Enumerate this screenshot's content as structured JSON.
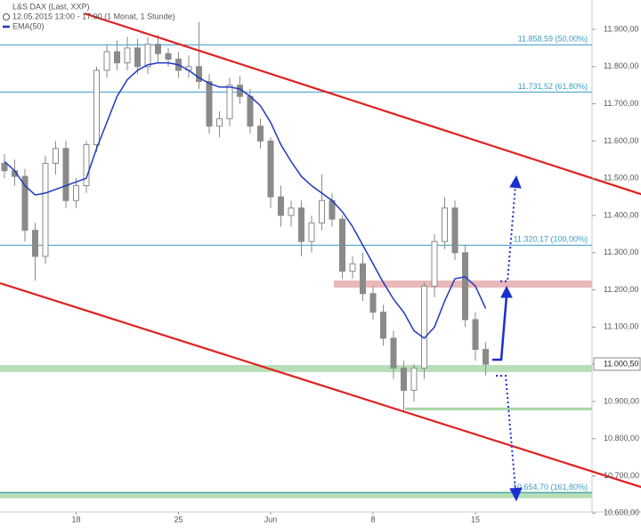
{
  "chart_data": {
    "type": "candlestick",
    "title": "L&S DAX (Last, XXP)",
    "subtitle": "12.05.2015 13:00 - 17:00 (1 Monat, 1 Stunde)",
    "categories": [
      null,
      null,
      null,
      null,
      null,
      null,
      null,
      "18",
      null,
      null,
      null,
      null,
      null,
      null,
      null,
      null,
      null,
      "25",
      null,
      null,
      null,
      null,
      null,
      null,
      null,
      null,
      "Jun",
      null,
      null,
      null,
      null,
      null,
      null,
      null,
      null,
      null,
      "8",
      null,
      null,
      null,
      null,
      null,
      null,
      null,
      null,
      null,
      "15",
      null
    ],
    "open": [
      11540,
      11520,
      11505,
      11360,
      11290,
      11540,
      11580,
      11440,
      11480,
      11590,
      11790,
      11840,
      11810,
      11850,
      11800,
      11860,
      11835,
      11820,
      11790,
      11800,
      11760,
      11640,
      11660,
      11750,
      11720,
      11640,
      11600,
      11450,
      11400,
      11420,
      11330,
      11380,
      11440,
      11390,
      11250,
      11270,
      11190,
      11140,
      11070,
      10990,
      10930,
      10990,
      11210,
      11330,
      11420,
      11300,
      11120,
      11040
    ],
    "high": [
      11565,
      11550,
      11525,
      11380,
      11560,
      11600,
      11600,
      11500,
      11600,
      11800,
      11860,
      11870,
      11880,
      11875,
      11880,
      11885,
      11850,
      11840,
      11830,
      11920,
      11780,
      11680,
      11770,
      11775,
      11740,
      11660,
      11610,
      11480,
      11440,
      11440,
      11400,
      11510,
      11460,
      11400,
      11290,
      11300,
      11210,
      11160,
      11090,
      11010,
      11000,
      11220,
      11350,
      11450,
      11440,
      11320,
      11140,
      11060
    ],
    "low": [
      11500,
      11480,
      11330,
      11225,
      11270,
      11510,
      11420,
      11420,
      11460,
      11570,
      11770,
      11790,
      11790,
      11780,
      11780,
      11810,
      11800,
      11770,
      11770,
      11740,
      11620,
      11610,
      11640,
      11700,
      11620,
      11580,
      11420,
      11370,
      11370,
      11290,
      11300,
      11360,
      11370,
      11230,
      11230,
      11170,
      11120,
      11050,
      10960,
      10870,
      10900,
      10960,
      11180,
      11310,
      11280,
      11100,
      11010,
      10970
    ],
    "close": [
      11520,
      11505,
      11360,
      11290,
      11540,
      11580,
      11440,
      11480,
      11590,
      11790,
      11840,
      11810,
      11850,
      11800,
      11860,
      11835,
      11820,
      11790,
      11800,
      11760,
      11640,
      11660,
      11750,
      11720,
      11640,
      11600,
      11450,
      11400,
      11420,
      11330,
      11380,
      11440,
      11390,
      11250,
      11270,
      11190,
      11140,
      11070,
      10990,
      10930,
      10990,
      11210,
      11330,
      11420,
      11300,
      11120,
      11040,
      11000
    ],
    "candle_color": "#8a8a8a",
    "ema": {
      "name": "EMA(50)",
      "color": "#2038c0",
      "values": [
        11545,
        11520,
        11480,
        11455,
        11460,
        11470,
        11480,
        11490,
        11500,
        11580,
        11650,
        11720,
        11765,
        11790,
        11805,
        11810,
        11810,
        11805,
        11790,
        11770,
        11755,
        11745,
        11745,
        11740,
        11720,
        11695,
        11650,
        11590,
        11545,
        11505,
        11480,
        11460,
        11440,
        11410,
        11370,
        11320,
        11270,
        11220,
        11175,
        11140,
        11090,
        11070,
        11100,
        11170,
        11230,
        11235,
        11210,
        11150
      ]
    },
    "ylim": [
      10560,
      11979
    ],
    "yticks": [
      {
        "value": 11900,
        "label": "11.900,00"
      },
      {
        "value": 11800,
        "label": "11.800,00"
      },
      {
        "value": 11700,
        "label": "11.700,00"
      },
      {
        "value": 11600,
        "label": "11.600,00"
      },
      {
        "value": 11500,
        "label": "11.500,00"
      },
      {
        "value": 11400,
        "label": "11.400,00"
      },
      {
        "value": 11300,
        "label": "11.300,00"
      },
      {
        "value": 11200,
        "label": "11.200,00"
      },
      {
        "value": 11100,
        "label": "11.100,00"
      },
      {
        "value": 11000,
        "label": "11.000,00"
      },
      {
        "value": 10900,
        "label": "10.900,00"
      },
      {
        "value": 10800,
        "label": "10.800,00"
      },
      {
        "value": 10700,
        "label": "10.700,00"
      },
      {
        "value": 10600,
        "label": "10.600,00"
      }
    ],
    "fib_levels": [
      {
        "value": 11858.59,
        "label": "11.858,59 (50,00%)"
      },
      {
        "value": 11731.52,
        "label": "11.731,52 (61,80%)"
      },
      {
        "value": 11320.17,
        "label": "11.320,17 (100,00%)"
      },
      {
        "value": 10654.7,
        "label": "10.654,70 (161,80%)"
      }
    ],
    "fib_color": "#3a9cc4",
    "last_price": {
      "value": 11000.5,
      "label": "11.000,50"
    },
    "zones": [
      {
        "from": 11206,
        "to": 11225,
        "color": "#e9b8b8"
      },
      {
        "from": 10979,
        "to": 10998,
        "color": "#b8deb8"
      },
      {
        "from": 10640,
        "to": 10658,
        "color": "#b8deb8"
      }
    ],
    "levels": [
      {
        "value": 10880,
        "color": "#a6d6a6"
      }
    ],
    "trendlines": [
      {
        "x": [
          7.8,
          62.2
        ],
        "values": [
          11943,
          11457
        ],
        "color": "#e02020"
      },
      {
        "x": [
          -0.43,
          62.2
        ],
        "values": [
          11218,
          10670
        ],
        "color": "#e02020"
      }
    ]
  }
}
